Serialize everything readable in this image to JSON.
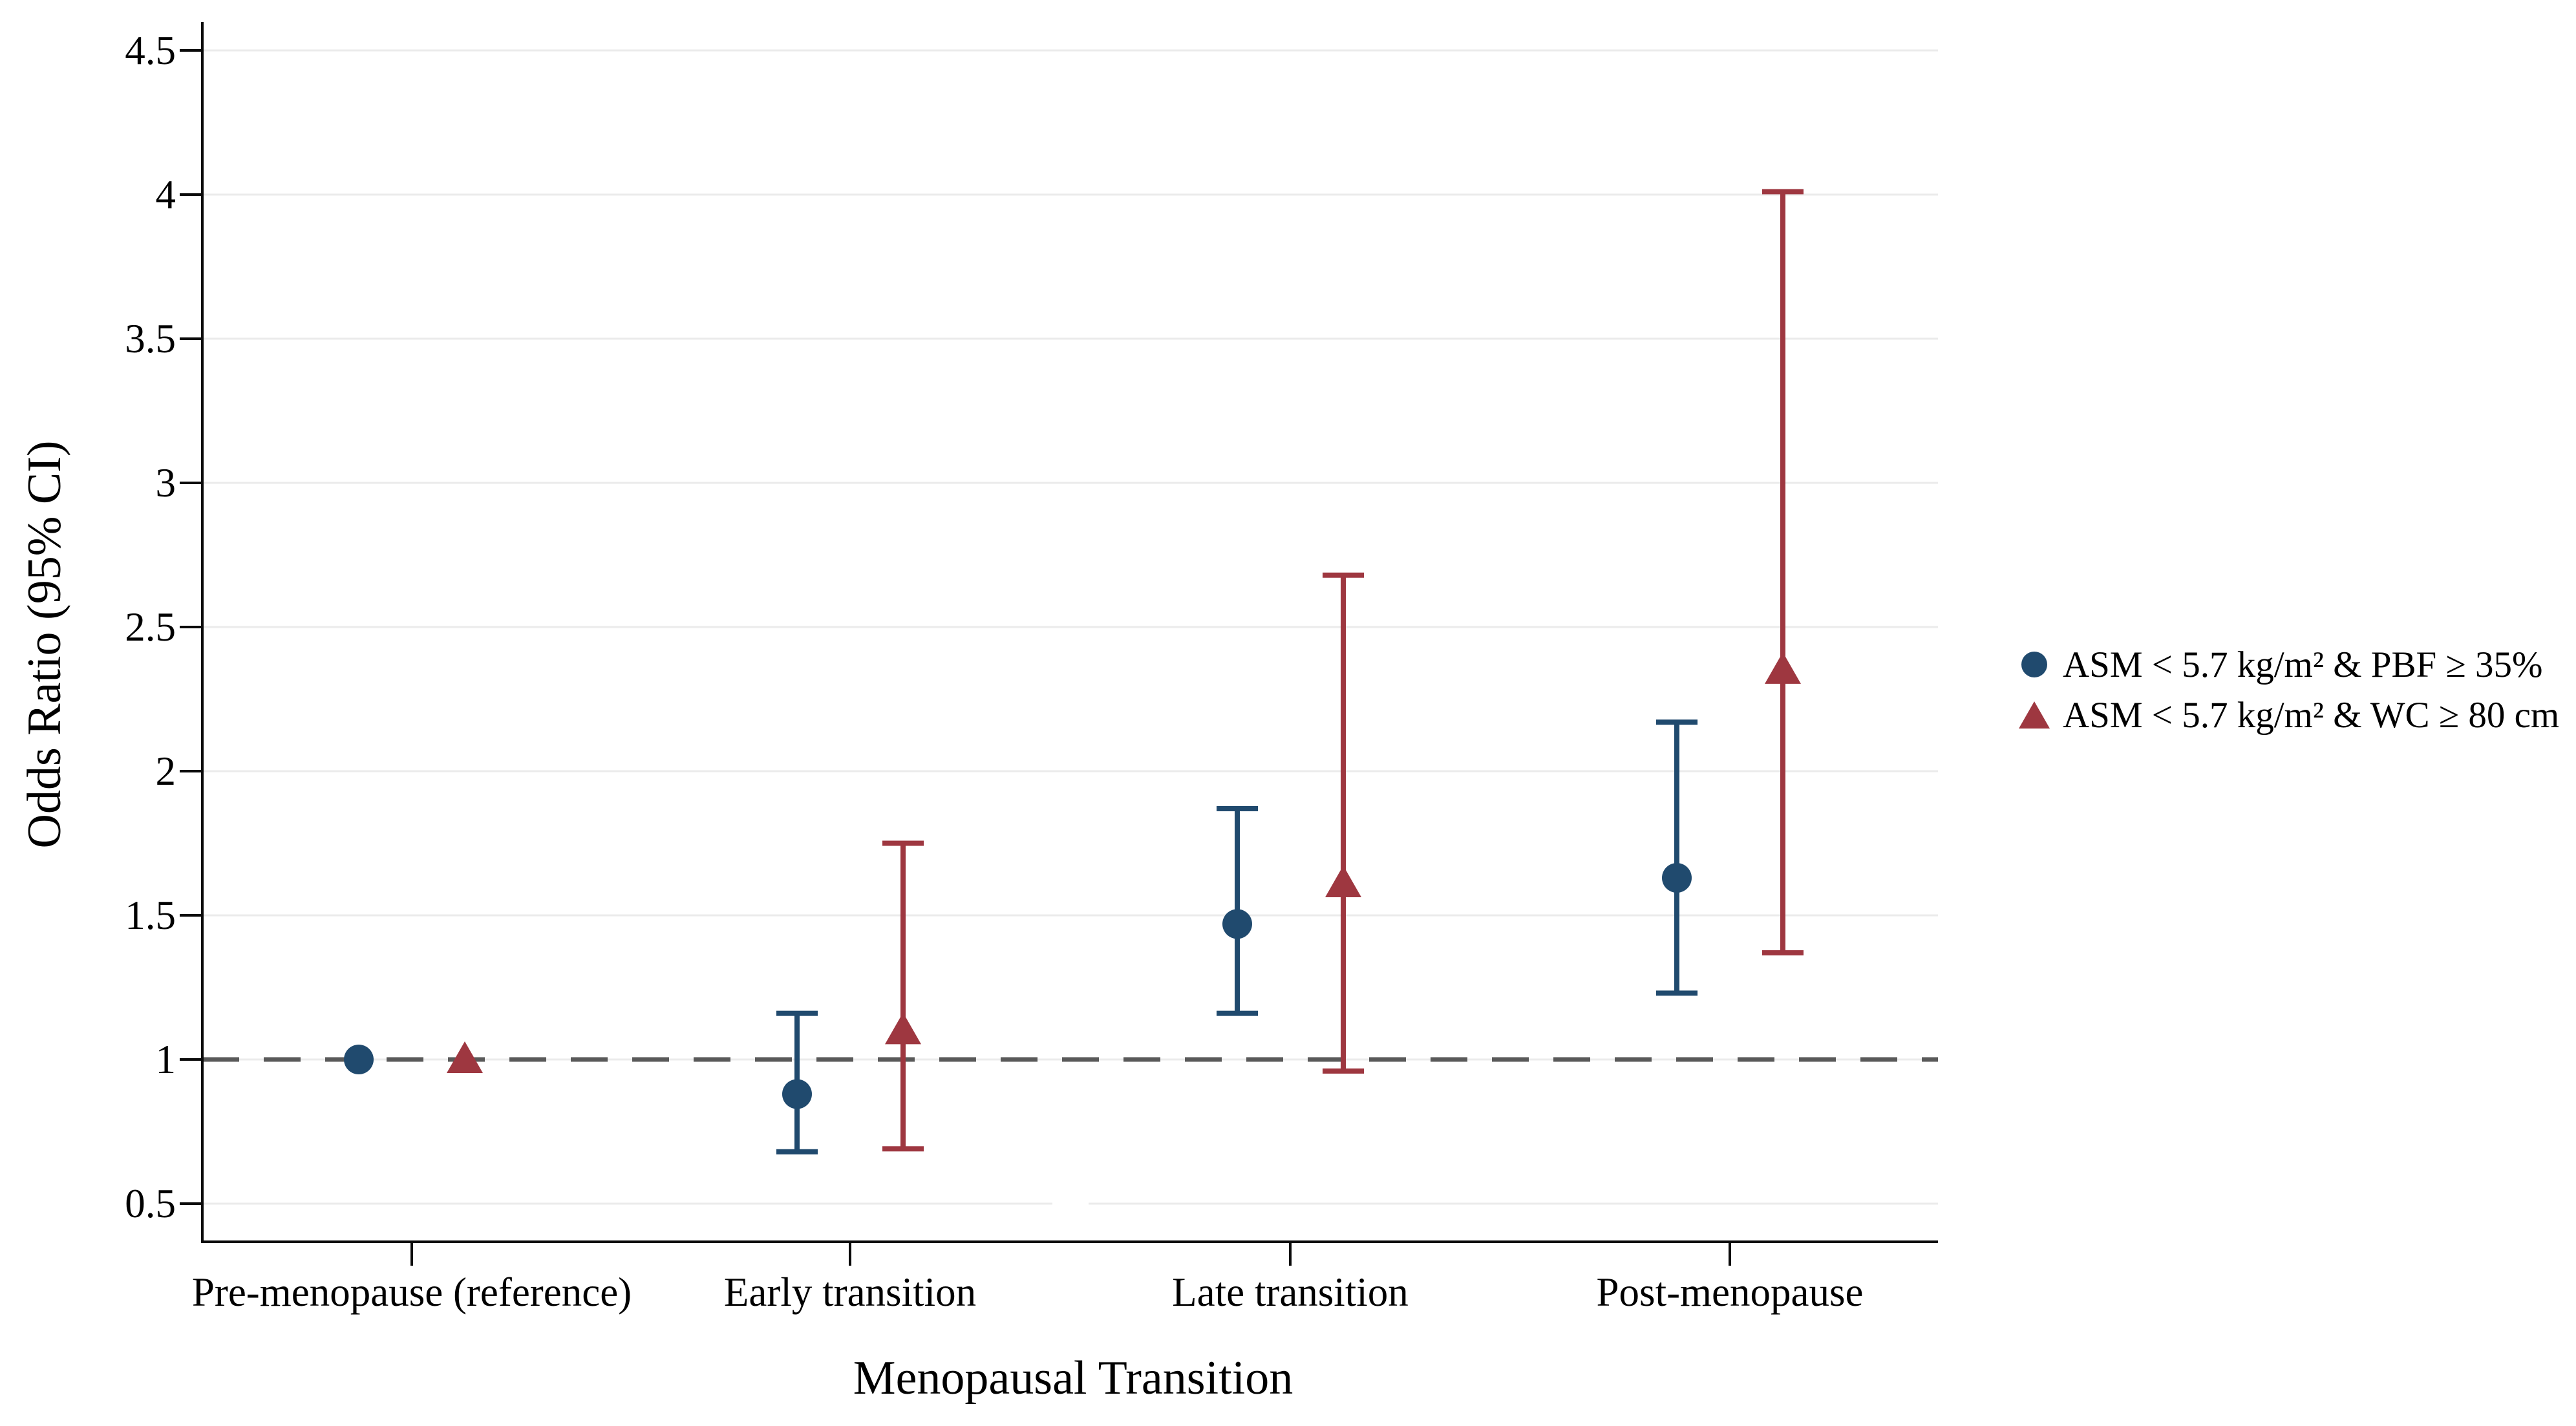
{
  "chart_data": {
    "type": "scatter",
    "subtype": "forest-errorbar",
    "title": "",
    "xlabel": "Menopausal Transition",
    "ylabel": "Odds Ratio (95% CI)",
    "categories": [
      "Pre-menopause (reference)",
      "Early transition",
      "Late transition",
      "Post-menopause"
    ],
    "y_ticks": [
      "0.5",
      "1",
      "1.5",
      "2",
      "2.5",
      "3",
      "3.5",
      "4",
      "4.5"
    ],
    "y_tick_values": [
      0.5,
      1,
      1.5,
      2,
      2.5,
      3,
      3.5,
      4,
      4.5
    ],
    "ylim": [
      0.35,
      4.6
    ],
    "grid": "horizontal",
    "reference_line": 1.0,
    "legend_position": "right",
    "series": [
      {
        "name": "ASM < 5.7 kg/m² & PBF ≥ 35%",
        "marker": "circle",
        "color": "#204a6e",
        "values": [
          {
            "category": "Pre-menopause (reference)",
            "or": 1.0,
            "lo": null,
            "hi": null
          },
          {
            "category": "Early transition",
            "or": 0.88,
            "lo": 0.68,
            "hi": 1.16
          },
          {
            "category": "Late transition",
            "or": 1.47,
            "lo": 1.16,
            "hi": 1.87
          },
          {
            "category": "Post-menopause",
            "or": 1.63,
            "lo": 1.23,
            "hi": 2.17
          }
        ]
      },
      {
        "name": "ASM < 5.7 kg/m² & WC ≥ 80 cm",
        "marker": "triangle",
        "color": "#9e3740",
        "values": [
          {
            "category": "Pre-menopause (reference)",
            "or": 1.0,
            "lo": null,
            "hi": null
          },
          {
            "category": "Early transition",
            "or": 1.1,
            "lo": 0.69,
            "hi": 1.75
          },
          {
            "category": "Late transition",
            "or": 1.61,
            "lo": 0.96,
            "hi": 2.68
          },
          {
            "category": "Post-menopause",
            "or": 2.35,
            "lo": 1.37,
            "hi": 4.01
          }
        ]
      }
    ],
    "colors": {
      "axis": "#0a0a0a",
      "gridline": "#ebebeb",
      "reference_dash": "#595959",
      "text": "#000000"
    }
  }
}
